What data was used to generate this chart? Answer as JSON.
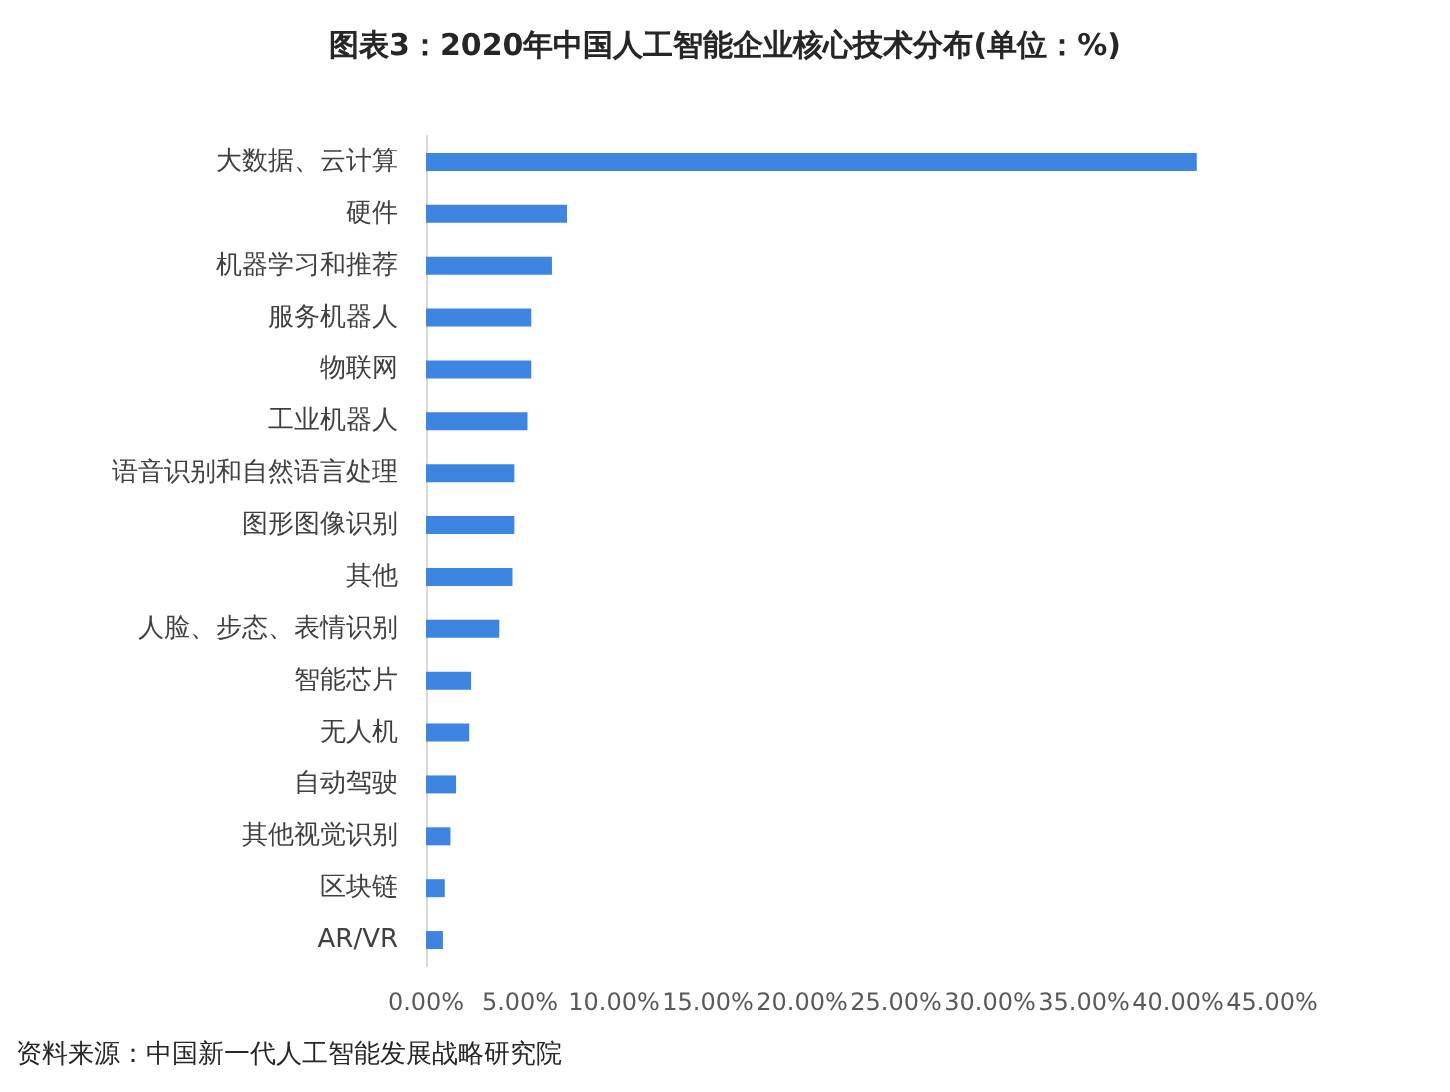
{
  "chart_data": {
    "type": "bar",
    "orientation": "horizontal",
    "title": "图表3：2020年中国人工智能企业核心技术分布(单位：%)",
    "categories": [
      "大数据、云计算",
      "硬件",
      "机器学习和推荐",
      "服务机器人",
      "物联网",
      "工业机器人",
      "语音识别和自然语言处理",
      "图形图像识别",
      "其他",
      "人脸、步态、表情识别",
      "智能芯片",
      "无人机",
      "自动驾驶",
      "其他视觉识别",
      "区块链",
      "AR/VR"
    ],
    "values": [
      41.0,
      7.5,
      6.7,
      5.6,
      5.6,
      5.4,
      4.7,
      4.7,
      4.6,
      3.9,
      2.4,
      2.3,
      1.6,
      1.3,
      1.0,
      0.9
    ],
    "color": "#3e85e1",
    "xlim": [
      0,
      45
    ],
    "xticks": [
      {
        "value": 0,
        "label": "0.00%"
      },
      {
        "value": 5,
        "label": "5.00%"
      },
      {
        "value": 10,
        "label": "10.00%"
      },
      {
        "value": 15,
        "label": "15.00%"
      },
      {
        "value": 20,
        "label": "20.00%"
      },
      {
        "value": 25,
        "label": "25.00%"
      },
      {
        "value": 30,
        "label": "30.00%"
      },
      {
        "value": 35,
        "label": "35.00%"
      },
      {
        "value": 40,
        "label": "40.00%"
      },
      {
        "value": 45,
        "label": "45.00%"
      }
    ],
    "annotations": [
      "资料来源：中国新一代人工智能发展战略研究院"
    ]
  }
}
